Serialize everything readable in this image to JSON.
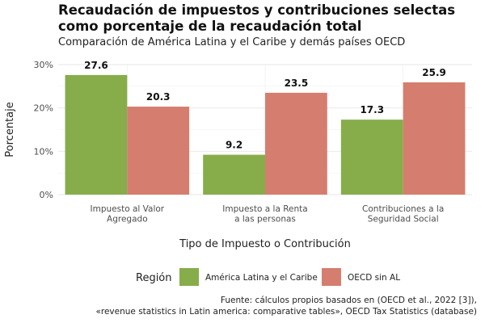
{
  "chart_data": {
    "type": "bar",
    "title": "Recaudación de impuestos y contribuciones selectas\ncomo porcentaje de la recaudación total",
    "subtitle": "Comparación de América Latina y el Caribe y demás países OECD",
    "xlabel": "Tipo de Impuesto o Contribución",
    "ylabel": "Porcentaje",
    "categories": [
      [
        "Impuesto al Valor",
        "Agregado"
      ],
      [
        "Impuesto a la Renta",
        "a las personas"
      ],
      [
        "Contribuciones a la",
        "Seguridad Social"
      ]
    ],
    "series": [
      {
        "name": "América Latina y el Caribe",
        "color": "#86ad4a",
        "values": [
          27.6,
          9.2,
          17.3
        ],
        "labels": [
          "27.6",
          "9.2",
          "17.3"
        ]
      },
      {
        "name": "OECD sin AL",
        "color": "#d57e6f",
        "values": [
          20.3,
          23.5,
          25.9
        ],
        "labels": [
          "20.3",
          "23.5",
          "25.9"
        ]
      }
    ],
    "ylim": [
      0,
      30
    ],
    "yticks": [
      0,
      10,
      20,
      30
    ],
    "ytick_labels": [
      "0%",
      "10%",
      "20%",
      "30%"
    ],
    "grid": true,
    "legend": {
      "title": "Región",
      "position": "bottom"
    }
  },
  "caption": {
    "line1": "Fuente: cálculos propios basados en (OECD et al., 2022 [3]),",
    "line2": "«revenue statistics in Latin america: comparative tables», OECD Tax Statistics (database)"
  }
}
